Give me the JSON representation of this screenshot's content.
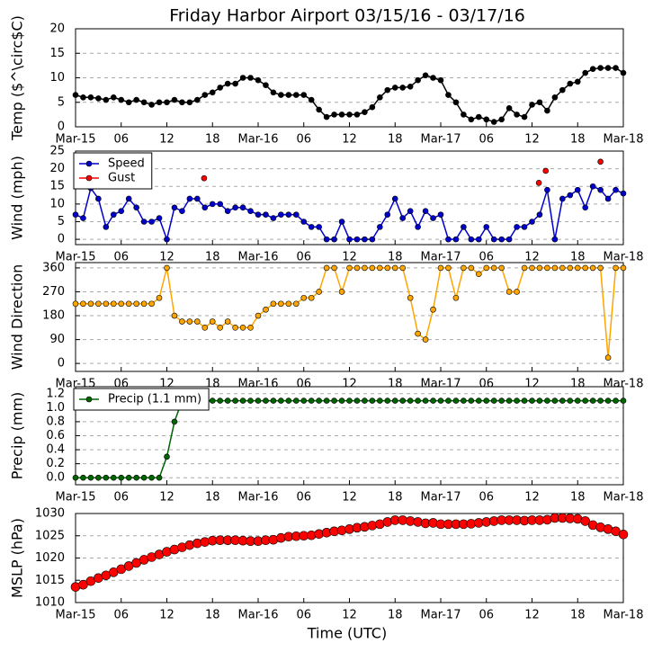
{
  "chart_data": [
    {
      "type": "line",
      "title": "Friday Harbor Airport 03/15/16 - 03/17/16",
      "ylabel": "Temp ($^\\circ$C)",
      "xlim": [
        0,
        72
      ],
      "xticks": [
        {
          "value": 0,
          "label": "Mar-15"
        },
        {
          "value": 6,
          "label": "06"
        },
        {
          "value": 12,
          "label": "12"
        },
        {
          "value": 18,
          "label": "18"
        },
        {
          "value": 24,
          "label": "Mar-16"
        },
        {
          "value": 30,
          "label": "06"
        },
        {
          "value": 36,
          "label": "12"
        },
        {
          "value": 42,
          "label": "18"
        },
        {
          "value": 48,
          "label": "Mar-17"
        },
        {
          "value": 54,
          "label": "06"
        },
        {
          "value": 60,
          "label": "12"
        },
        {
          "value": 66,
          "label": "18"
        },
        {
          "value": 72,
          "label": "Mar-18"
        }
      ],
      "ylim": [
        0,
        20
      ],
      "yticks": [
        0,
        5,
        10,
        15,
        20
      ],
      "grid": true,
      "color": "#000000",
      "marker_size": 3,
      "x": [
        0,
        1,
        2,
        3,
        4,
        5,
        6,
        7,
        8,
        9,
        10,
        11,
        12,
        13,
        14,
        15,
        16,
        17,
        18,
        19,
        20,
        21,
        22,
        23,
        24,
        25,
        26,
        27,
        28,
        29,
        30,
        31,
        32,
        33,
        34,
        35,
        36,
        37,
        38,
        39,
        40,
        41,
        42,
        43,
        44,
        45,
        46,
        47,
        48,
        49,
        50,
        51,
        52,
        53,
        54,
        55,
        56,
        57,
        58,
        59,
        60,
        61,
        62,
        63,
        64,
        65,
        66,
        67,
        68,
        69,
        70,
        71,
        72
      ],
      "values": [
        6.5,
        6,
        6,
        5.8,
        5.5,
        6,
        5.5,
        5,
        5.5,
        5,
        4.5,
        5,
        5,
        5.5,
        5,
        5,
        5.5,
        6.5,
        7,
        8,
        8.8,
        8.8,
        10,
        10,
        9.5,
        8.5,
        7,
        6.5,
        6.5,
        6.5,
        6.5,
        5.5,
        3.5,
        2,
        2.5,
        2.5,
        2.5,
        2.5,
        3,
        4,
        6,
        7.5,
        8,
        8,
        8.2,
        9.5,
        10.5,
        10,
        9.5,
        6.5,
        5,
        2.5,
        1.5,
        2,
        1.5,
        1,
        1.5,
        3.8,
        2.5,
        2,
        4.5,
        5,
        3.3,
        6,
        7.5,
        8.8,
        9.2,
        11,
        11.8,
        12,
        12,
        12,
        11
      ]
    },
    {
      "type": "line",
      "ylabel": "Wind (mph)",
      "legend": "upper left",
      "xlim": [
        0,
        72
      ],
      "xticks": [
        {
          "value": 0,
          "label": "Mar-15"
        },
        {
          "value": 6,
          "label": "06"
        },
        {
          "value": 12,
          "label": "12"
        },
        {
          "value": 18,
          "label": "18"
        },
        {
          "value": 24,
          "label": "Mar-16"
        },
        {
          "value": 30,
          "label": "06"
        },
        {
          "value": 36,
          "label": "12"
        },
        {
          "value": 42,
          "label": "18"
        },
        {
          "value": 48,
          "label": "Mar-17"
        },
        {
          "value": 54,
          "label": "06"
        },
        {
          "value": 60,
          "label": "12"
        },
        {
          "value": 66,
          "label": "18"
        },
        {
          "value": 72,
          "label": "Mar-18"
        }
      ],
      "ylim": [
        -1.5,
        25
      ],
      "yticks": [
        0,
        5,
        10,
        15,
        20,
        25
      ],
      "grid": true,
      "series": [
        {
          "name": "Speed",
          "color": "#0000cc",
          "marker_size": 3,
          "x": [
            0,
            1,
            2,
            3,
            4,
            5,
            6,
            7,
            8,
            9,
            10,
            11,
            12,
            13,
            14,
            15,
            16,
            17,
            18,
            19,
            20,
            21,
            22,
            23,
            24,
            25,
            26,
            27,
            28,
            29,
            30,
            31,
            32,
            33,
            34,
            35,
            36,
            37,
            38,
            39,
            40,
            41,
            42,
            43,
            44,
            45,
            46,
            47,
            48,
            49,
            50,
            51,
            52,
            53,
            54,
            55,
            56,
            57,
            58,
            59,
            60,
            61,
            62,
            63,
            64,
            65,
            66,
            67,
            68,
            69,
            70,
            71,
            72
          ],
          "values": [
            7,
            6,
            14.5,
            11.5,
            3.5,
            7,
            8,
            11.5,
            9,
            5,
            5,
            6,
            0,
            9,
            8,
            11.5,
            11.5,
            9,
            10,
            10,
            8,
            9,
            9,
            8,
            7,
            7,
            6,
            7,
            7,
            7,
            5,
            3.5,
            3.5,
            0,
            0,
            5,
            0,
            0,
            0,
            0,
            3.5,
            7,
            11.5,
            6,
            8,
            3.5,
            8,
            6,
            7,
            0,
            0,
            3.5,
            0,
            0,
            3.5,
            0,
            0,
            0,
            3.5,
            3.5,
            5,
            7,
            14,
            0,
            11.5,
            12.5,
            14,
            9,
            15,
            14,
            11.5,
            14,
            13
          ]
        },
        {
          "name": "Gust",
          "color": "#ff0000",
          "marker_size": 3,
          "linestyle": "none",
          "x": [
            16.9,
            60.9,
            61.8,
            69
          ],
          "values": [
            17.3,
            16,
            19.4,
            22
          ]
        }
      ]
    },
    {
      "type": "line",
      "ylabel": "Wind Direction",
      "xlim": [
        0,
        72
      ],
      "xticks": [
        {
          "value": 0,
          "label": "Mar-15"
        },
        {
          "value": 6,
          "label": "06"
        },
        {
          "value": 12,
          "label": "12"
        },
        {
          "value": 18,
          "label": "18"
        },
        {
          "value": 24,
          "label": "Mar-16"
        },
        {
          "value": 30,
          "label": "06"
        },
        {
          "value": 36,
          "label": "12"
        },
        {
          "value": 42,
          "label": "18"
        },
        {
          "value": 48,
          "label": "Mar-17"
        },
        {
          "value": 54,
          "label": "06"
        },
        {
          "value": 60,
          "label": "12"
        },
        {
          "value": 66,
          "label": "18"
        },
        {
          "value": 72,
          "label": "Mar-18"
        }
      ],
      "ylim": [
        -30,
        380
      ],
      "yticks": [
        0,
        90,
        180,
        270,
        360
      ],
      "grid": true,
      "color": "#ffa500",
      "marker_size": 3,
      "x": [
        0,
        1,
        2,
        3,
        4,
        5,
        6,
        7,
        8,
        9,
        10,
        11,
        12,
        13,
        14,
        15,
        16,
        17,
        18,
        19,
        20,
        21,
        22,
        23,
        24,
        25,
        26,
        27,
        28,
        29,
        30,
        31,
        32,
        33,
        34,
        35,
        36,
        37,
        38,
        39,
        40,
        41,
        42,
        43,
        44,
        45,
        46,
        47,
        48,
        49,
        50,
        51,
        52,
        53,
        54,
        55,
        56,
        57,
        58,
        59,
        60,
        61,
        62,
        63,
        64,
        65,
        66,
        67,
        68,
        69,
        70,
        71,
        72
      ],
      "values": [
        225,
        225,
        225,
        225,
        225,
        225,
        225,
        225,
        225,
        225,
        225,
        247,
        360,
        180,
        158,
        158,
        158,
        135,
        158,
        135,
        158,
        135,
        135,
        135,
        180,
        203,
        225,
        225,
        225,
        225,
        247,
        247,
        270,
        360,
        360,
        270,
        360,
        360,
        360,
        360,
        360,
        360,
        360,
        360,
        247,
        112,
        90,
        203,
        360,
        360,
        247,
        360,
        360,
        337,
        360,
        360,
        360,
        270,
        270,
        360,
        360,
        360,
        360,
        360,
        360,
        360,
        360,
        360,
        360,
        360,
        22,
        360,
        360
      ]
    },
    {
      "type": "line",
      "ylabel": "Precip (mm)",
      "legend": "upper left",
      "xlim": [
        0,
        72
      ],
      "xticks": [
        {
          "value": 0,
          "label": "Mar-15"
        },
        {
          "value": 6,
          "label": "06"
        },
        {
          "value": 12,
          "label": "12"
        },
        {
          "value": 18,
          "label": "18"
        },
        {
          "value": 24,
          "label": "Mar-16"
        },
        {
          "value": 30,
          "label": "06"
        },
        {
          "value": 36,
          "label": "12"
        },
        {
          "value": 42,
          "label": "18"
        },
        {
          "value": 48,
          "label": "Mar-17"
        },
        {
          "value": 54,
          "label": "06"
        },
        {
          "value": 60,
          "label": "12"
        },
        {
          "value": 66,
          "label": "18"
        },
        {
          "value": 72,
          "label": "Mar-18"
        }
      ],
      "ylim": [
        -0.1,
        1.3
      ],
      "yticks": [
        {
          "value": 0,
          "label": "0.0"
        },
        {
          "value": 0.2,
          "label": "0.2"
        },
        {
          "value": 0.4,
          "label": "0.4"
        },
        {
          "value": 0.6,
          "label": "0.6"
        },
        {
          "value": 0.8,
          "label": "0.8"
        },
        {
          "value": 1,
          "label": "1.0"
        },
        {
          "value": 1.2,
          "label": "1.2"
        }
      ],
      "grid": true,
      "series": [
        {
          "name": "Precip (1.1 mm)",
          "color": "#006400",
          "marker_size": 3,
          "x": [
            0,
            1,
            2,
            3,
            4,
            5,
            6,
            7,
            8,
            9,
            10,
            11,
            12,
            13,
            14,
            15,
            16,
            17,
            18,
            19,
            20,
            21,
            22,
            23,
            24,
            25,
            26,
            27,
            28,
            29,
            30,
            31,
            32,
            33,
            34,
            35,
            36,
            37,
            38,
            39,
            40,
            41,
            42,
            43,
            44,
            45,
            46,
            47,
            48,
            49,
            50,
            51,
            52,
            53,
            54,
            55,
            56,
            57,
            58,
            59,
            60,
            61,
            62,
            63,
            64,
            65,
            66,
            67,
            68,
            69,
            70,
            71,
            72
          ],
          "values": [
            0,
            0,
            0,
            0,
            0,
            0,
            0,
            0,
            0,
            0,
            0,
            0,
            0.3,
            0.8,
            1.1,
            1.1,
            1.1,
            1.1,
            1.1,
            1.1,
            1.1,
            1.1,
            1.1,
            1.1,
            1.1,
            1.1,
            1.1,
            1.1,
            1.1,
            1.1,
            1.1,
            1.1,
            1.1,
            1.1,
            1.1,
            1.1,
            1.1,
            1.1,
            1.1,
            1.1,
            1.1,
            1.1,
            1.1,
            1.1,
            1.1,
            1.1,
            1.1,
            1.1,
            1.1,
            1.1,
            1.1,
            1.1,
            1.1,
            1.1,
            1.1,
            1.1,
            1.1,
            1.1,
            1.1,
            1.1,
            1.1,
            1.1,
            1.1,
            1.1,
            1.1,
            1.1,
            1.1,
            1.1,
            1.1,
            1.1,
            1.1,
            1.1,
            1.1
          ]
        }
      ]
    },
    {
      "type": "scatter",
      "ylabel": "MSLP (hPa)",
      "xlabel": "Time (UTC)",
      "xlim": [
        0,
        72
      ],
      "xticks": [
        {
          "value": 0,
          "label": "Mar-15"
        },
        {
          "value": 6,
          "label": "06"
        },
        {
          "value": 12,
          "label": "12"
        },
        {
          "value": 18,
          "label": "18"
        },
        {
          "value": 24,
          "label": "Mar-16"
        },
        {
          "value": 30,
          "label": "06"
        },
        {
          "value": 36,
          "label": "12"
        },
        {
          "value": 42,
          "label": "18"
        },
        {
          "value": 48,
          "label": "Mar-17"
        },
        {
          "value": 54,
          "label": "06"
        },
        {
          "value": 60,
          "label": "12"
        },
        {
          "value": 66,
          "label": "18"
        },
        {
          "value": 72,
          "label": "Mar-18"
        }
      ],
      "ylim": [
        1010,
        1030
      ],
      "yticks": [
        1010,
        1015,
        1020,
        1025,
        1030
      ],
      "grid": true,
      "color": "#ff0000",
      "marker_size": 5,
      "linestyle": "none",
      "x": [
        0,
        1,
        2,
        3,
        4,
        5,
        6,
        7,
        8,
        9,
        10,
        11,
        12,
        13,
        14,
        15,
        16,
        17,
        18,
        19,
        20,
        21,
        22,
        23,
        24,
        25,
        26,
        27,
        28,
        29,
        30,
        31,
        32,
        33,
        34,
        35,
        36,
        37,
        38,
        39,
        40,
        41,
        42,
        43,
        44,
        45,
        46,
        47,
        48,
        49,
        50,
        51,
        52,
        53,
        54,
        55,
        56,
        57,
        58,
        59,
        60,
        61,
        62,
        63,
        64,
        65,
        66,
        67,
        68,
        69,
        70,
        71,
        72
      ],
      "values": [
        1013.5,
        1014,
        1014.8,
        1015.5,
        1016.1,
        1016.8,
        1017.5,
        1018.2,
        1018.9,
        1019.6,
        1020.2,
        1020.8,
        1021.4,
        1021.9,
        1022.4,
        1022.9,
        1023.3,
        1023.6,
        1023.9,
        1024,
        1024,
        1024,
        1023.9,
        1023.8,
        1023.8,
        1024,
        1024.1,
        1024.5,
        1024.8,
        1024.9,
        1025,
        1025.1,
        1025.4,
        1025.7,
        1026,
        1026.2,
        1026.5,
        1026.8,
        1027,
        1027.3,
        1027.6,
        1028.1,
        1028.5,
        1028.5,
        1028.3,
        1028.1,
        1027.8,
        1027.9,
        1027.6,
        1027.6,
        1027.6,
        1027.6,
        1027.7,
        1027.9,
        1028.1,
        1028.3,
        1028.5,
        1028.5,
        1028.5,
        1028.4,
        1028.5,
        1028.5,
        1028.6,
        1029,
        1029,
        1028.9,
        1028.8,
        1028.3,
        1027.4,
        1026.9,
        1026.5,
        1026,
        1025.3
      ]
    }
  ]
}
